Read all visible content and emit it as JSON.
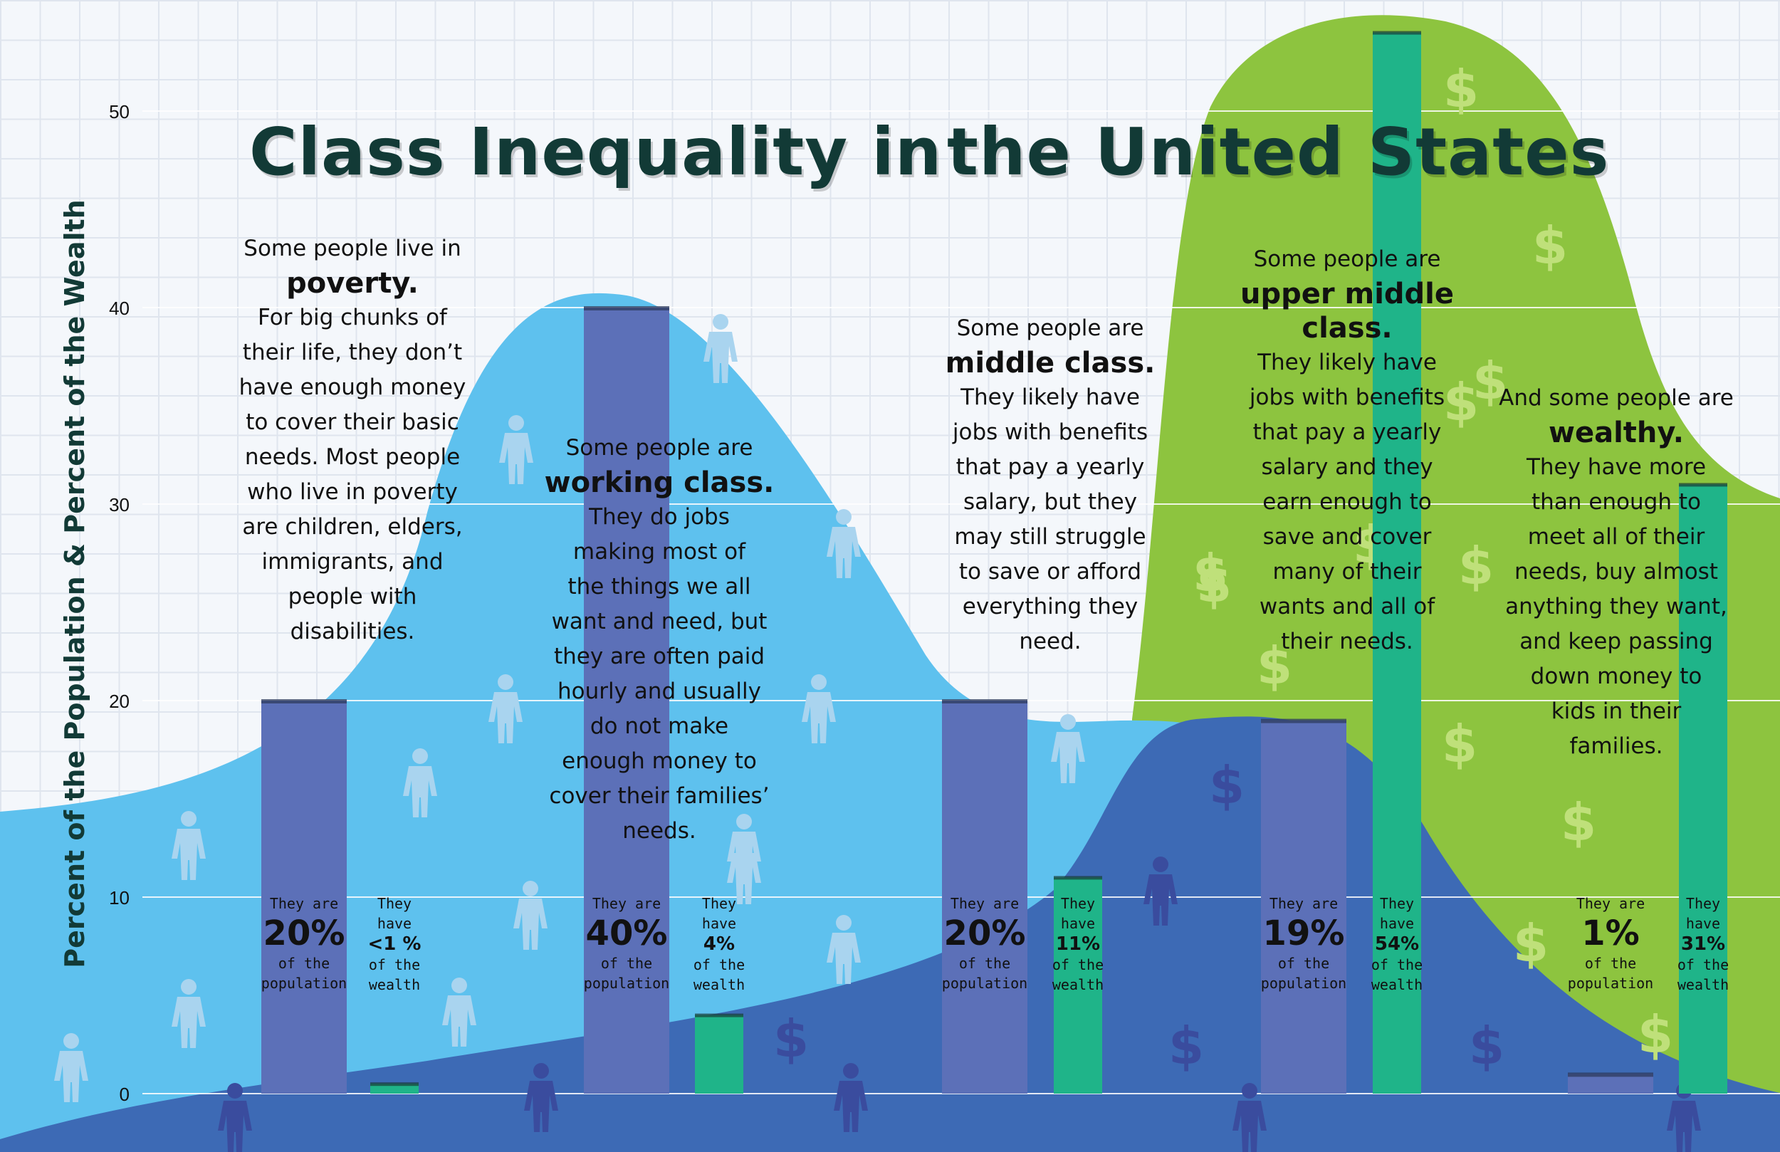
{
  "title_left": "Class Inequality in",
  "title_right": "the United States",
  "ylabel": "Percent of the Population & Percent of the Wealth",
  "colors": {
    "population_bar": "#5c70b8",
    "wealth_bar": "#1fb489",
    "curve_population": "#5ec1ee",
    "curve_wealth_green": "#8dc43f",
    "curve_wealth_blue": "#3d6ab5",
    "dollar_light": "#bfe07a",
    "dollar_dark": "#3a4c9e",
    "figure_light": "#a9d4ef",
    "figure_dark": "#3a4c9e"
  },
  "icons": [
    "person-icon",
    "dollar-icon"
  ],
  "blurbs": [
    {
      "pre": "Some people live in",
      "highlight": "poverty.",
      "post": [
        "For big chunks of",
        "their life, they don’t",
        "have enough money",
        "to cover their basic",
        "needs. Most people",
        "who live in poverty",
        "are children, elders,",
        "immigrants, and",
        "people with",
        "disabilities."
      ]
    },
    {
      "pre": "Some people are",
      "highlight": "working class.",
      "post": [
        "They do jobs",
        "making most of",
        "the things we all",
        "want and need, but",
        "they are often paid",
        "hourly and usually",
        "do not make",
        "enough money to",
        "cover their families’",
        "needs."
      ]
    },
    {
      "pre": "Some people are",
      "highlight": "middle class.",
      "post": [
        "They likely have",
        "jobs with benefits",
        "that pay a yearly",
        "salary, but they",
        "may still struggle",
        "to save or afford",
        "everything they",
        "need."
      ]
    },
    {
      "pre": "Some people are",
      "highlight": "upper middle class.",
      "post": [
        "They likely have",
        "jobs with benefits",
        "that pay a yearly",
        "salary and they",
        "earn enough to",
        "save and cover",
        "many of their",
        "wants and all of",
        "their needs."
      ]
    },
    {
      "pre": "And some people are",
      "highlight": "wealthy.",
      "post": [
        "They have more",
        "than enough to",
        "meet all of their",
        "needs, buy almost",
        "anything they want,",
        "and keep passing",
        "down money to",
        "kids in their",
        "families."
      ]
    }
  ],
  "chart_data": {
    "type": "bar",
    "categories": [
      "poverty",
      "working class",
      "middle class",
      "upper middle class",
      "wealthy"
    ],
    "ylim": [
      0,
      55
    ],
    "yticks": [
      0,
      10,
      20,
      30,
      40,
      50
    ],
    "ylabel": "Percent of the Population & Percent of the Wealth",
    "grid": true,
    "series": [
      {
        "values": [
          20,
          40,
          20,
          19,
          1
        ]
      },
      {
        "values": [
          0.5,
          4,
          11,
          54,
          31
        ]
      }
    ],
    "bar_labels": [
      {
        "pop": {
          "top": "They are",
          "big": "20%",
          "bottom": [
            "of the",
            "population"
          ]
        },
        "wealth": {
          "lines": [
            "They",
            "have"
          ],
          "mid": "<1 %",
          "bottom": [
            "of the",
            "wealth"
          ]
        }
      },
      {
        "pop": {
          "top": "They are",
          "big": "40%",
          "bottom": [
            "of the",
            "population"
          ]
        },
        "wealth": {
          "lines": [
            "They",
            "have"
          ],
          "mid": "4%",
          "bottom": [
            "of the",
            "wealth"
          ]
        }
      },
      {
        "pop": {
          "top": "They are",
          "big": "20%",
          "bottom": [
            "of the",
            "population"
          ]
        },
        "wealth": {
          "lines": [
            "They",
            "have"
          ],
          "mid": "11%",
          "bottom": [
            "of the",
            "wealth"
          ]
        }
      },
      {
        "pop": {
          "top": "They are",
          "big": "19%",
          "bottom": [
            "of the",
            "population"
          ]
        },
        "wealth": {
          "lines": [
            "They",
            "have"
          ],
          "mid": "54%",
          "bottom": [
            "of the",
            "wealth"
          ]
        }
      },
      {
        "pop": {
          "top": "They are",
          "big": "1%",
          "bottom": [
            "of the",
            "population"
          ]
        },
        "wealth": {
          "lines": [
            "They",
            "have"
          ],
          "mid": "31%",
          "bottom": [
            "of the",
            "wealth"
          ]
        }
      }
    ]
  }
}
